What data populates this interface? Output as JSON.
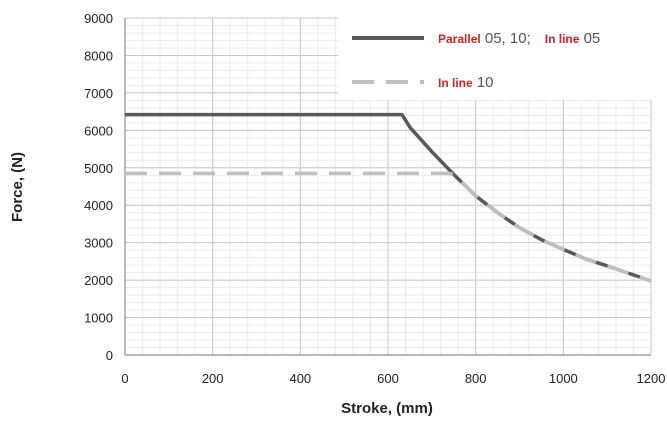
{
  "chart_data": {
    "type": "line",
    "xlabel": "Stroke, (mm)",
    "ylabel": "Force, (N)",
    "xlim": [
      0,
      1200
    ],
    "ylim": [
      0,
      9000
    ],
    "x_ticks": [
      "0",
      "200",
      "400",
      "600",
      "800",
      "1000",
      "1200"
    ],
    "y_ticks": [
      "0",
      "1000",
      "2000",
      "3000",
      "4000",
      "5000",
      "6000",
      "7000",
      "8000",
      "9000"
    ],
    "grid": true,
    "legend_position": "top-right",
    "series": [
      {
        "legend_parts": [
          {
            "text": "Parallel",
            "style": "red"
          },
          {
            "text": " 05, 10;",
            "style": "grey"
          },
          {
            "text": "In line",
            "style": "red"
          },
          {
            "text": " 05",
            "style": "grey"
          }
        ],
        "color": "#595959",
        "dash": "solid",
        "x": [
          0,
          632,
          650,
          700,
          750,
          800,
          850,
          900,
          950,
          1000,
          1050,
          1100,
          1150,
          1200
        ],
        "y": [
          6420,
          6420,
          6080,
          5430,
          4820,
          4250,
          3800,
          3400,
          3080,
          2820,
          2570,
          2380,
          2180,
          1980
        ]
      },
      {
        "legend_parts": [
          {
            "text": "In line",
            "style": "red"
          },
          {
            "text": " 10",
            "style": "grey"
          }
        ],
        "color": "#bfbfbf",
        "dash": "dashed",
        "x": [
          0,
          740,
          750,
          800,
          850,
          900,
          950,
          1000,
          1050,
          1100,
          1150,
          1200
        ],
        "y": [
          4850,
          4850,
          4820,
          4250,
          3800,
          3400,
          3080,
          2820,
          2570,
          2380,
          2180,
          1980
        ]
      }
    ]
  }
}
